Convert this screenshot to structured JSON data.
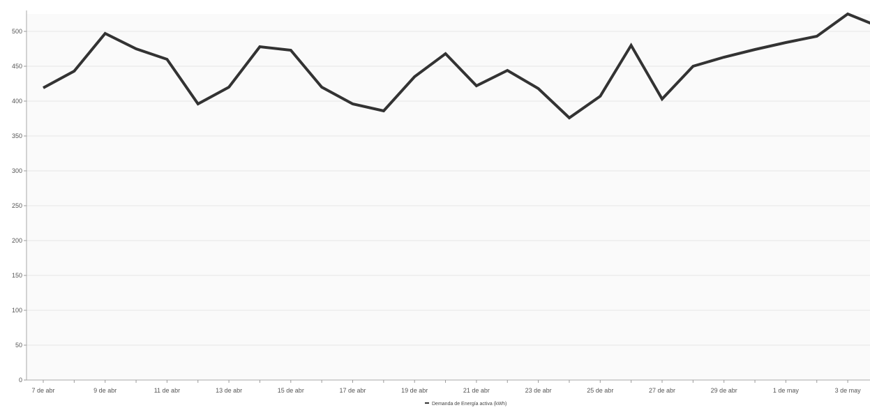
{
  "chart_data": {
    "type": "line",
    "x": [
      "7 de abr",
      "8 de abr",
      "9 de abr",
      "10 de abr",
      "11 de abr",
      "12 de abr",
      "13 de abr",
      "14 de abr",
      "15 de abr",
      "16 de abr",
      "17 de abr",
      "18 de abr",
      "19 de abr",
      "20 de abr",
      "21 de abr",
      "22 de abr",
      "23 de abr",
      "24 de abr",
      "25 de abr",
      "26 de abr",
      "27 de abr",
      "28 de abr",
      "29 de abr",
      "30 de abr",
      "1 de may",
      "2 de may",
      "3 de may",
      "4 de may"
    ],
    "series": [
      {
        "name": "Demanda de Energía activa (kWh)",
        "color": "#333333",
        "values": [
          419,
          443,
          497,
          475,
          460,
          396,
          420,
          478,
          473,
          420,
          396,
          386,
          435,
          468,
          422,
          444,
          418,
          376,
          407,
          480,
          403,
          450,
          463,
          474,
          484,
          493,
          525,
          507
        ]
      }
    ],
    "x_tick_labels": [
      "7 de abr",
      "9 de abr",
      "11 de abr",
      "13 de abr",
      "15 de abr",
      "17 de abr",
      "19 de abr",
      "21 de abr",
      "23 de abr",
      "25 de abr",
      "27 de abr",
      "29 de abr",
      "1 de may",
      "3 de may"
    ],
    "y_ticks": [
      "0",
      "50",
      "100",
      "150",
      "200",
      "250",
      "300",
      "350",
      "400",
      "450",
      "500"
    ],
    "ylim": [
      0,
      525
    ],
    "grid": true,
    "legend_position": "bottom-center",
    "title": "",
    "xlabel": "",
    "ylabel": ""
  }
}
